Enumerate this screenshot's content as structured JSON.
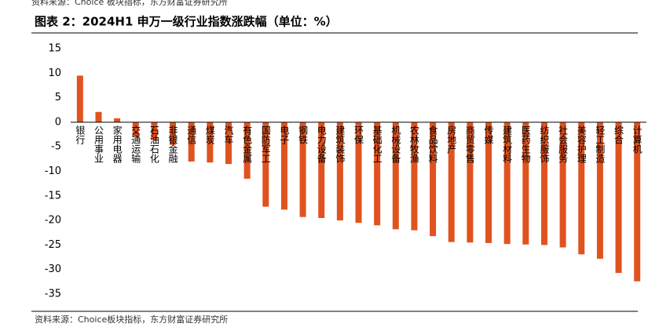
{
  "header_note": "资料来源：Choice 板块指标，东方财富证券研究所",
  "chart_data": {
    "type": "bar",
    "title": "图表 2：2024H1 申万一级行业指数涨跌幅（单位：%）",
    "categories": [
      "银行",
      "公用事业",
      "家用电器",
      "交通运输",
      "石油石化",
      "非银金融",
      "通信",
      "煤炭",
      "汽车",
      "有色金属",
      "国防军工",
      "电子",
      "钢铁",
      "电力设备",
      "建筑装饰",
      "环保",
      "基础化工",
      "机械设备",
      "农林牧渔",
      "食品饮料",
      "房地产",
      "商贸零售",
      "传媒",
      "建筑材料",
      "医药生物",
      "纺织服饰",
      "社会服务",
      "美容护理",
      "轻工制造",
      "综合",
      "计算机"
    ],
    "values": [
      9.5,
      2.1,
      0.8,
      -3.0,
      -3.6,
      -4.6,
      -8.0,
      -8.2,
      -8.5,
      -11.5,
      -17.2,
      -17.8,
      -19.3,
      -19.5,
      -20.0,
      -20.5,
      -21.0,
      -21.8,
      -22.0,
      -23.2,
      -24.4,
      -24.5,
      -24.6,
      -24.8,
      -24.9,
      -25.0,
      -25.5,
      -26.9,
      -27.8,
      -30.7,
      -32.4
    ],
    "color": "#e0531f",
    "ylim": [
      -35,
      15
    ],
    "yticks": [
      15,
      10,
      5,
      0,
      -5,
      -10,
      -15,
      -20,
      -25,
      -30,
      -35
    ],
    "source": "资料来源：Choice板块指标，东方财富证券研究所"
  }
}
